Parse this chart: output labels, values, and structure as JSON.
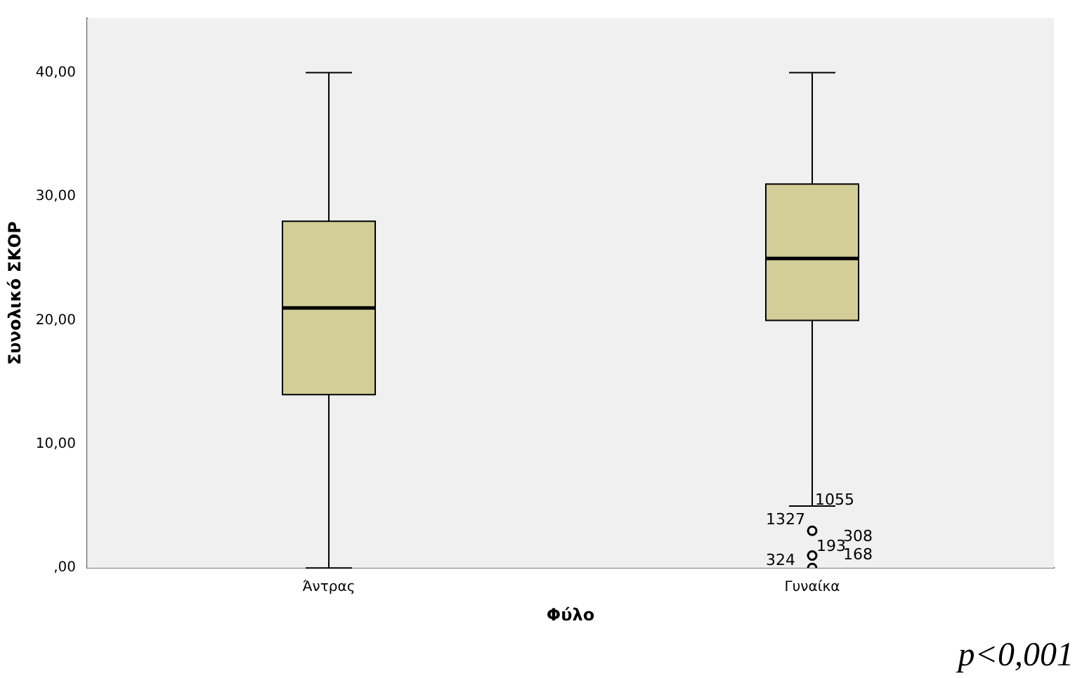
{
  "chart_data": {
    "type": "box",
    "xlabel": "Φύλο",
    "ylabel": "Συνολικό ΣΚΟΡ",
    "categories": [
      "Άντρας",
      "Γυναίκα"
    ],
    "boxes": [
      {
        "low": 0,
        "q1": 14,
        "median": 21,
        "q3": 28,
        "high": 40
      },
      {
        "low": 5,
        "q1": 20,
        "median": 25,
        "q3": 31,
        "high": 40,
        "outliers": [
          3,
          1,
          0
        ]
      }
    ],
    "color": "#d3ce97",
    "ylim": [
      0,
      44.4
    ],
    "yticks": [
      {
        "value": 0,
        "label": ",00"
      },
      {
        "value": 10,
        "label": "10,00"
      },
      {
        "value": 20,
        "label": "20,00"
      },
      {
        "value": 30,
        "label": "30,00"
      },
      {
        "value": 40,
        "label": "40,00"
      }
    ],
    "grid": false,
    "annotations": [
      "1055",
      "1327",
      "308",
      "193",
      "168",
      "324",
      "p<0,001"
    ]
  }
}
